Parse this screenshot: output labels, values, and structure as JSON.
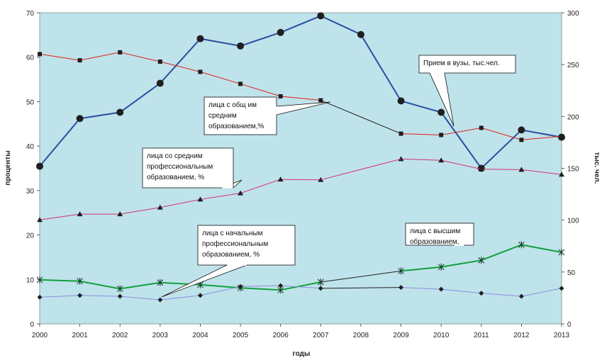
{
  "chart_data": {
    "type": "line",
    "x": [
      2000,
      2001,
      2002,
      2003,
      2004,
      2005,
      2006,
      2007,
      2008,
      2009,
      2010,
      2011,
      2012,
      2013
    ],
    "xlabel": "годы",
    "ylabel": "проценты",
    "y2label": "тыс. чел.",
    "ylim": [
      0,
      70
    ],
    "y2lim": [
      0,
      300
    ],
    "yticks": [
      0,
      10,
      20,
      30,
      40,
      50,
      60,
      70
    ],
    "y2ticks": [
      0,
      50,
      100,
      150,
      200,
      250,
      300
    ],
    "grid": false,
    "plot_background": "#bfe3ea",
    "series": [
      {
        "key": "admission",
        "name": "Прием в вузы, тыс.чел.",
        "axis": "right",
        "color": "#2b4ea2",
        "marker": "circle",
        "values": [
          152,
          198,
          204,
          232,
          275,
          268,
          281,
          297,
          279,
          215,
          204,
          150,
          187,
          180
        ]
      },
      {
        "key": "general",
        "name": "лица с общ им средним образованием,%",
        "axis": "left",
        "color": "#e0201b",
        "marker": "square",
        "values": [
          60.7,
          59.3,
          61.1,
          59.0,
          56.7,
          54.0,
          51.2,
          50.3,
          null,
          42.8,
          42.5,
          44.1,
          41.4,
          42.2
        ]
      },
      {
        "key": "secondary_prof",
        "name": "лица со средним профессиональным образованием, %",
        "axis": "left",
        "color": "#d2327a",
        "marker": "triangle",
        "values": [
          23.4,
          24.7,
          24.7,
          26.2,
          28.0,
          29.4,
          32.5,
          32.4,
          null,
          37.1,
          36.8,
          34.8,
          34.7,
          33.6
        ]
      },
      {
        "key": "higher",
        "name": "лица с высшим образованием",
        "axis": "left",
        "color": "#10a03c",
        "marker": "star",
        "values": [
          9.9,
          9.6,
          7.9,
          9.3,
          8.8,
          8.1,
          7.6,
          9.4,
          null,
          11.9,
          12.8,
          14.3,
          17.8,
          16.1
        ]
      },
      {
        "key": "primary_prof",
        "name": "лица с начальным профессиональным образованием, %",
        "axis": "left",
        "color": "#8a8ee0",
        "marker": "diamond",
        "values": [
          6.0,
          6.4,
          6.2,
          5.4,
          6.4,
          8.4,
          8.6,
          8.0,
          null,
          8.2,
          7.8,
          6.9,
          6.2,
          8.0
        ]
      }
    ],
    "callouts": [
      {
        "key": "admission",
        "lines": [
          "Прием в вузы, тыс.чел."
        ]
      },
      {
        "key": "general",
        "lines": [
          "лица с общ им",
          "средним",
          "образованием,%"
        ]
      },
      {
        "key": "secondary_prof",
        "lines": [
          "лица со средним",
          "профессиональным",
          "образованием, %"
        ]
      },
      {
        "key": "primary_prof",
        "lines": [
          "лица с начальным",
          "профессиональным",
          "образованием, %"
        ]
      },
      {
        "key": "higher",
        "lines": [
          "лица с высшим",
          "образованием,"
        ]
      }
    ]
  }
}
